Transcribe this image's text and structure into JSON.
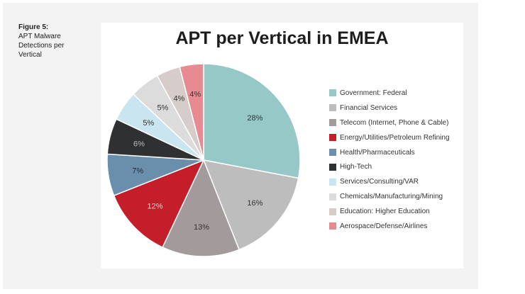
{
  "caption": {
    "figure_label": "Figure 5:",
    "text_lines": [
      "APT Malware",
      "Detections per",
      "Vertical"
    ]
  },
  "chart_data": {
    "type": "pie",
    "title": "APT per Vertical in EMEA",
    "start_angle_deg": 0,
    "direction": "clockwise",
    "slices": [
      {
        "label": "Government: Federal",
        "value": 28,
        "display": "28%",
        "color": "#96c8c8",
        "label_color": "#333333"
      },
      {
        "label": "Financial Services",
        "value": 16,
        "display": "16%",
        "color": "#bdbdbd",
        "label_color": "#333333"
      },
      {
        "label": "Telecom (Internet, Phone & Cable)",
        "value": 13,
        "display": "13%",
        "color": "#a39b9b",
        "label_color": "#333333"
      },
      {
        "label": "Energy/Utilities/Petroleum Refining",
        "value": 12,
        "display": "12%",
        "color": "#c41e2a",
        "label_color": "#f2c4c4"
      },
      {
        "label": "Health/Pharmaceuticals",
        "value": 7,
        "display": "7%",
        "color": "#6a8fad",
        "label_color": "#1f2a36"
      },
      {
        "label": "High-Tech",
        "value": 6,
        "display": "6%",
        "color": "#2f3032",
        "label_color": "#bcbcbc"
      },
      {
        "label": "Services/Consulting/VAR",
        "value": 5,
        "display": "5%",
        "color": "#c9e5ef",
        "label_color": "#333333"
      },
      {
        "label": "Chemicals/Manufacturing/Mining",
        "value": 5,
        "display": "5%",
        "color": "#dcdcdc",
        "label_color": "#333333"
      },
      {
        "label": "Education: Higher Education",
        "value": 4,
        "display": "4%",
        "color": "#d6ccca",
        "label_color": "#333333"
      },
      {
        "label": "Aerospace/Defense/Airlines",
        "value": 4,
        "display": "4%",
        "color": "#e88a91",
        "label_color": "#333333"
      }
    ],
    "legend_position": "right"
  }
}
